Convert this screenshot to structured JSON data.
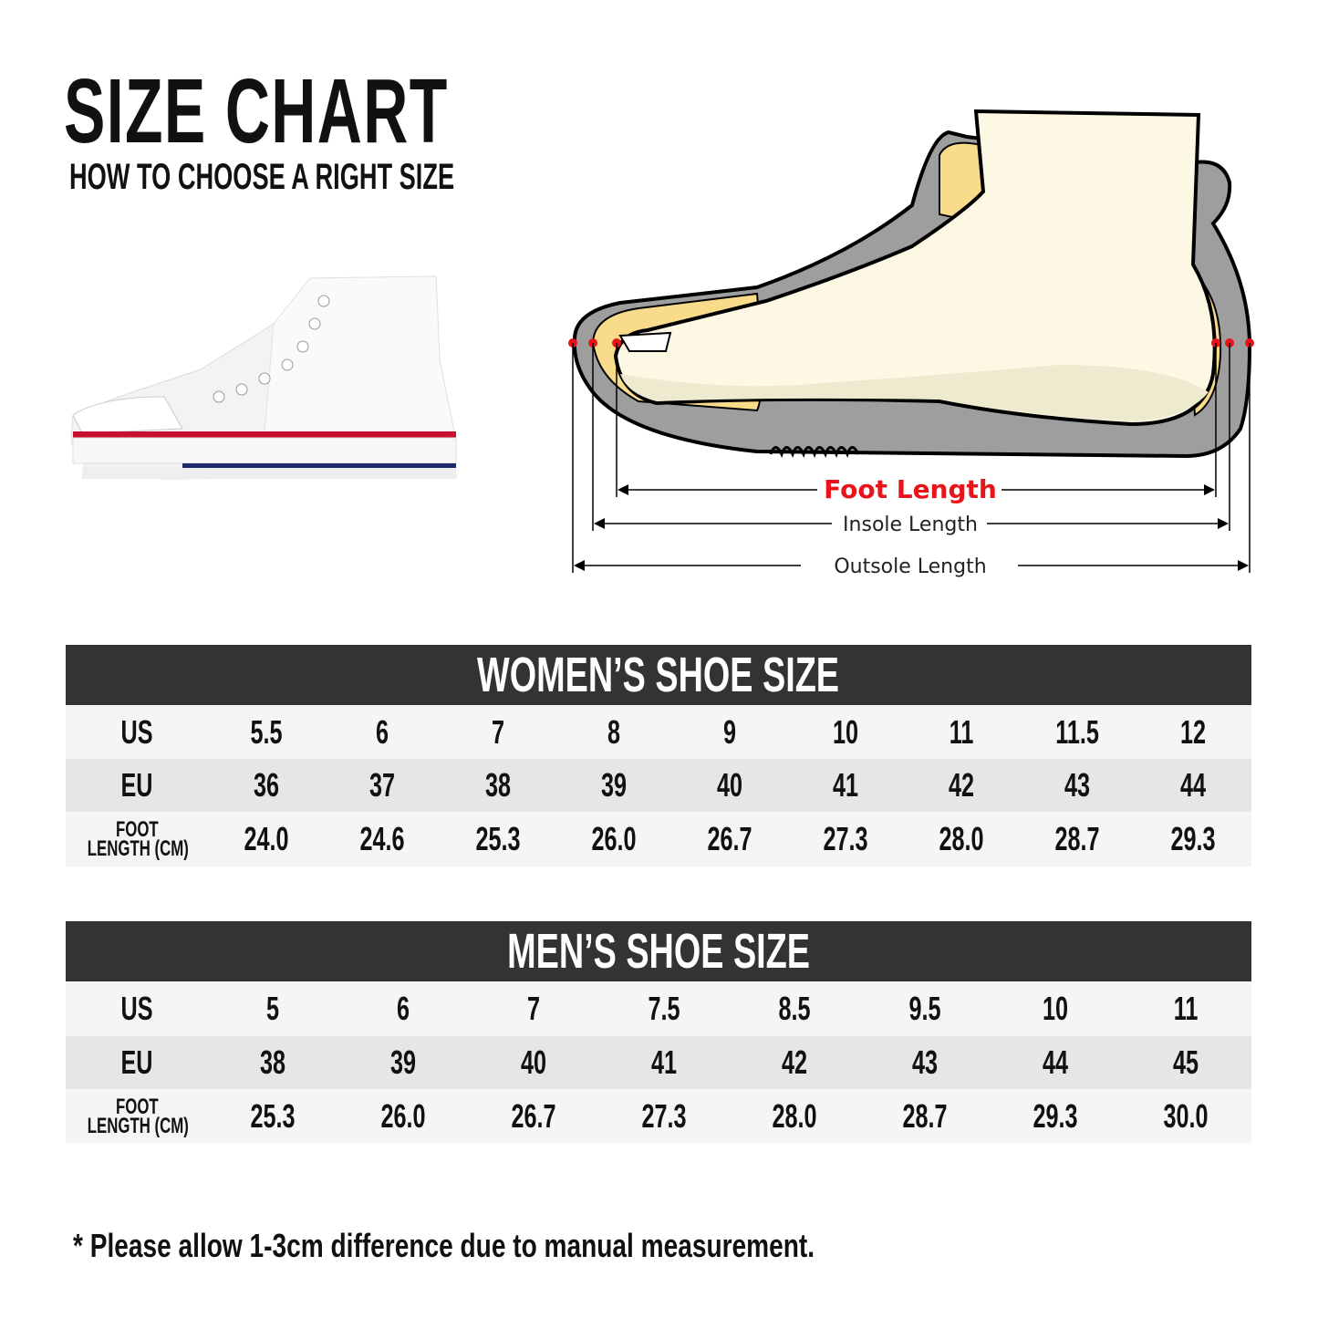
{
  "header": {
    "title": "SIZE CHART",
    "subtitle": "HOW TO CHOOSE A RIGHT SIZE"
  },
  "diagram": {
    "foot_length": "Foot Length",
    "insole_length": "Insole Length",
    "outsole_length": "Outsole Length",
    "accent_color": "#e8141b"
  },
  "women": {
    "title": "WOMEN’S SHOE SIZE",
    "row_labels": {
      "us": "US",
      "eu": "EU",
      "foot_1": "FOOT",
      "foot_2": "LENGTH (CM)"
    },
    "us": [
      "5.5",
      "6",
      "7",
      "8",
      "9",
      "10",
      "11",
      "11.5",
      "12"
    ],
    "eu": [
      "36",
      "37",
      "38",
      "39",
      "40",
      "41",
      "42",
      "43",
      "44"
    ],
    "foot_length_cm": [
      "24.0",
      "24.6",
      "25.3",
      "26.0",
      "26.7",
      "27.3",
      "28.0",
      "28.7",
      "29.3"
    ]
  },
  "men": {
    "title": "MEN’S SHOE SIZE",
    "row_labels": {
      "us": "US",
      "eu": "EU",
      "foot_1": "FOOT",
      "foot_2": "LENGTH (CM)"
    },
    "us": [
      "5",
      "6",
      "7",
      "7.5",
      "8.5",
      "9.5",
      "10",
      "11"
    ],
    "eu": [
      "38",
      "39",
      "40",
      "41",
      "42",
      "43",
      "44",
      "45"
    ],
    "foot_length_cm": [
      "25.3",
      "26.0",
      "26.7",
      "27.3",
      "28.0",
      "28.7",
      "29.3",
      "30.0"
    ]
  },
  "footnote": "* Please allow 1-3cm difference due to manual measurement."
}
